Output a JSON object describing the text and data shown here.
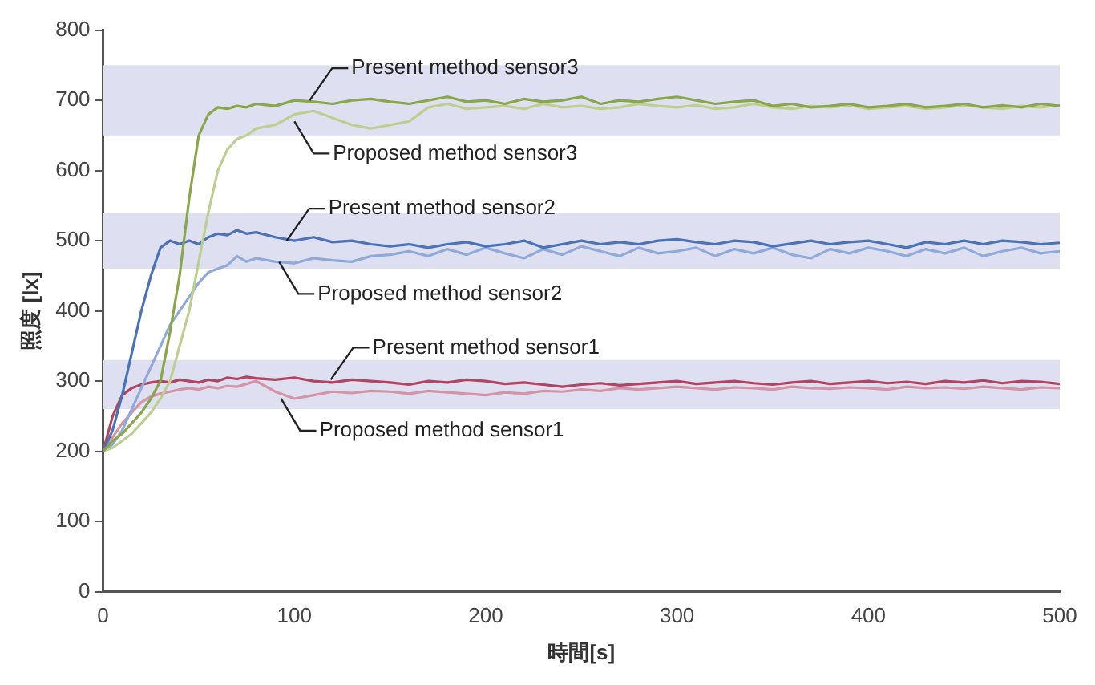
{
  "chart_data": {
    "type": "line",
    "xlabel": "時間[s]",
    "ylabel": "照度 [lx]",
    "x": [
      0,
      5,
      10,
      15,
      20,
      25,
      30,
      35,
      40,
      45,
      50,
      55,
      60,
      65,
      70,
      75,
      80,
      90,
      100,
      110,
      120,
      130,
      140,
      150,
      160,
      170,
      180,
      190,
      200,
      210,
      220,
      230,
      240,
      250,
      260,
      270,
      280,
      290,
      300,
      310,
      320,
      330,
      340,
      350,
      360,
      370,
      380,
      390,
      400,
      410,
      420,
      430,
      440,
      450,
      460,
      470,
      480,
      490,
      500
    ],
    "xlim": [
      0,
      500
    ],
    "xticks": [
      0,
      100,
      200,
      300,
      400,
      500
    ],
    "ylim": [
      0,
      800
    ],
    "yticks": [
      0,
      100,
      200,
      300,
      400,
      500,
      600,
      700,
      800
    ],
    "grid": false,
    "legend": false,
    "marker": "none",
    "line_style": "solid",
    "series": [
      {
        "color": "#8aa64a",
        "values": [
          200,
          215,
          225,
          240,
          255,
          275,
          300,
          370,
          450,
          560,
          650,
          680,
          690,
          688,
          692,
          690,
          695,
          692,
          700,
          698,
          695,
          700,
          702,
          698,
          695,
          700,
          705,
          698,
          700,
          695,
          702,
          698,
          700,
          705,
          695,
          700,
          698,
          702,
          705,
          700,
          695,
          698,
          700,
          692,
          695,
          690,
          692,
          695,
          690,
          692,
          695,
          690,
          692,
          695,
          690,
          693,
          690,
          695,
          692
        ]
      },
      {
        "color": "#bccf8e",
        "values": [
          200,
          205,
          215,
          225,
          240,
          255,
          275,
          300,
          350,
          400,
          470,
          540,
          600,
          630,
          645,
          650,
          660,
          665,
          680,
          685,
          675,
          665,
          660,
          665,
          670,
          690,
          695,
          688,
          690,
          692,
          688,
          695,
          690,
          692,
          688,
          690,
          695,
          692,
          690,
          693,
          688,
          690,
          695,
          690,
          688,
          692,
          690,
          693,
          688,
          690,
          692,
          688,
          690,
          693,
          690,
          688,
          692,
          690,
          693
        ]
      },
      {
        "color": "#4a72b8",
        "values": [
          200,
          230,
          280,
          340,
          400,
          450,
          490,
          500,
          495,
          500,
          495,
          505,
          510,
          508,
          515,
          510,
          512,
          505,
          500,
          505,
          498,
          500,
          495,
          492,
          495,
          490,
          495,
          498,
          492,
          495,
          500,
          490,
          495,
          500,
          495,
          498,
          495,
          500,
          502,
          498,
          495,
          500,
          498,
          492,
          496,
          500,
          495,
          498,
          500,
          495,
          490,
          498,
          495,
          500,
          495,
          500,
          498,
          495,
          497
        ]
      },
      {
        "color": "#91a9d8",
        "values": [
          200,
          210,
          230,
          260,
          290,
          320,
          350,
          380,
          400,
          420,
          440,
          455,
          460,
          465,
          478,
          470,
          475,
          470,
          468,
          475,
          472,
          470,
          478,
          480,
          485,
          478,
          488,
          480,
          490,
          482,
          475,
          488,
          480,
          492,
          485,
          478,
          490,
          482,
          485,
          490,
          478,
          488,
          482,
          490,
          480,
          475,
          488,
          482,
          490,
          485,
          478,
          488,
          482,
          490,
          478,
          485,
          490,
          482,
          485
        ]
      },
      {
        "color": "#b04462",
        "values": [
          200,
          250,
          280,
          290,
          295,
          298,
          300,
          298,
          302,
          300,
          298,
          302,
          300,
          305,
          303,
          306,
          304,
          302,
          305,
          300,
          298,
          302,
          300,
          298,
          295,
          300,
          298,
          302,
          300,
          296,
          298,
          295,
          292,
          295,
          297,
          294,
          296,
          298,
          300,
          296,
          298,
          300,
          297,
          295,
          298,
          300,
          296,
          298,
          300,
          297,
          299,
          296,
          300,
          298,
          301,
          297,
          300,
          299,
          296
        ]
      },
      {
        "color": "#d594a6",
        "values": [
          200,
          220,
          240,
          255,
          270,
          278,
          282,
          285,
          288,
          290,
          288,
          292,
          290,
          293,
          292,
          296,
          300,
          285,
          275,
          280,
          285,
          283,
          286,
          285,
          282,
          286,
          284,
          282,
          280,
          284,
          282,
          286,
          285,
          288,
          286,
          290,
          288,
          290,
          292,
          290,
          288,
          291,
          290,
          288,
          292,
          290,
          289,
          291,
          290,
          288,
          292,
          290,
          291,
          289,
          292,
          290,
          288,
          291,
          290
        ]
      }
    ],
    "bands": [
      {
        "axis": "y",
        "from": 650,
        "to": 750,
        "color": "#dedff0"
      },
      {
        "axis": "y",
        "from": 460,
        "to": 540,
        "color": "#dedff0"
      },
      {
        "axis": "y",
        "from": 260,
        "to": 330,
        "color": "#dedff0"
      }
    ],
    "annotations": [
      {
        "text": "Present method sensor3",
        "x": 108,
        "y": 700
      },
      {
        "text": "Proposed method sensor3",
        "x": 100,
        "y": 670
      },
      {
        "text": "Present method sensor2",
        "x": 96,
        "y": 500
      },
      {
        "text": "Proposed method sensor2",
        "x": 92,
        "y": 470
      },
      {
        "text": "Present method sensor1",
        "x": 119,
        "y": 302
      },
      {
        "text": "Proposed method sensor1",
        "x": 93,
        "y": 275
      }
    ]
  }
}
